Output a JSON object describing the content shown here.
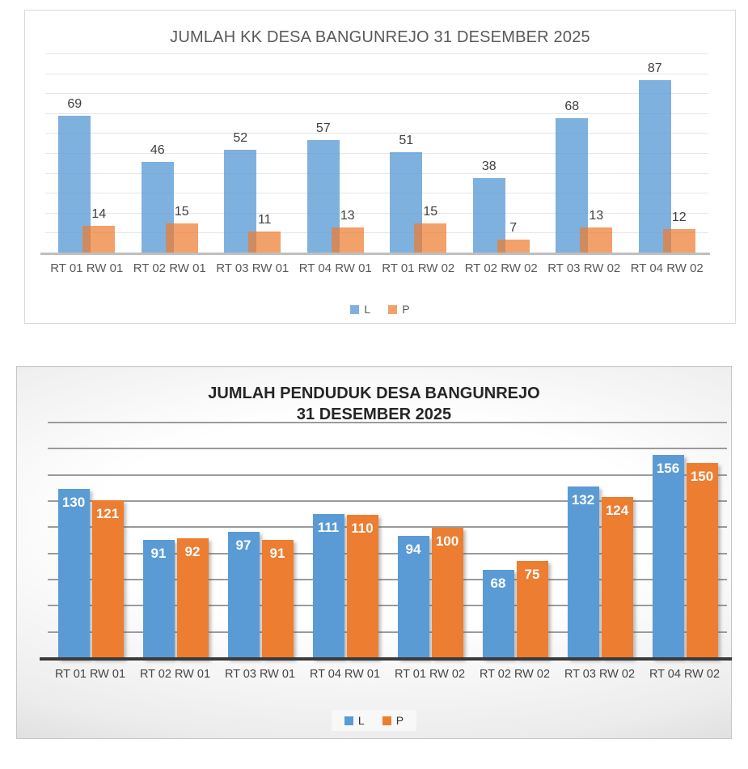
{
  "chart_data": [
    {
      "type": "bar",
      "title": "JUMLAH KK DESA BANGUNREJO 31 DESEMBER 2025",
      "categories": [
        "RT 01 RW 01",
        "RT 02 RW 01",
        "RT 03 RW 01",
        "RT 04 RW 01",
        "RT 01 RW 02",
        "RT 02 RW 02",
        "RT 03 RW 02",
        "RT 04 RW 02"
      ],
      "series": [
        {
          "name": "L",
          "color": "#5B9BD5",
          "opacity": 0.78,
          "values": [
            69,
            46,
            52,
            57,
            51,
            38,
            68,
            87
          ]
        },
        {
          "name": "P",
          "color": "#ED7D31",
          "opacity": 0.72,
          "values": [
            14,
            15,
            11,
            13,
            15,
            7,
            13,
            12
          ]
        }
      ],
      "xlabel": "",
      "ylabel": "",
      "ylim": [
        0,
        100
      ],
      "grid_step": 10,
      "grid": true,
      "legend_position": "bottom",
      "legend_labels": [
        "L",
        "P"
      ],
      "value_labels": "above-bars",
      "value_label_color": "#404040",
      "title_color": "#595959",
      "plot_background": "#ffffff"
    },
    {
      "type": "bar",
      "title": "JUMLAH PENDUDUK DESA BANGUNREJO 31 DESEMBER 2025",
      "title_line1": "JUMLAH PENDUDUK DESA BANGUNREJO",
      "title_line2": "31 DESEMBER 2025",
      "categories": [
        "RT 01 RW 01",
        "RT 02 RW 01",
        "RT 03 RW 01",
        "RT 04 RW 01",
        "RT 01 RW 02",
        "RT 02 RW 02",
        "RT 03 RW 02",
        "RT 04 RW 02"
      ],
      "series": [
        {
          "name": "L",
          "color": "#5B9BD5",
          "opacity": 1,
          "values": [
            130,
            91,
            97,
            111,
            94,
            68,
            132,
            156
          ]
        },
        {
          "name": "P",
          "color": "#ED7D31",
          "opacity": 1,
          "values": [
            121,
            92,
            91,
            110,
            100,
            75,
            124,
            150
          ]
        }
      ],
      "xlabel": "",
      "ylabel": "",
      "ylim": [
        0,
        180
      ],
      "grid_step": 20,
      "grid": true,
      "legend_position": "bottom",
      "legend_labels": [
        "L",
        "P"
      ],
      "value_labels": "inside-end-white",
      "value_label_color": "#ffffff",
      "title_color": "#262626",
      "plot_background": "gradient-gray"
    }
  ]
}
